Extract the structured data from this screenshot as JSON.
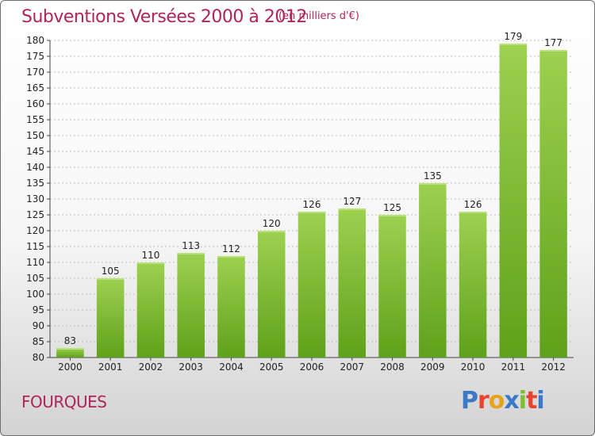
{
  "header": {
    "title": "Subventions Versées 2000 à 2012",
    "subtitle": "(en milliers d'€)"
  },
  "footer": {
    "commune": "FOURQUES",
    "logo_text": "Proxiti",
    "logo_colors": [
      "#3a78c8",
      "#e8432e",
      "#e8a31c",
      "#3a78c8",
      "#7cbf2e",
      "#e8432e",
      "#3a78c8"
    ]
  },
  "chart_data": {
    "type": "bar",
    "title": "Subventions Versées 2000 à 2012",
    "subtitle": "(en milliers d'€)",
    "categories": [
      "2000",
      "2001",
      "2002",
      "2003",
      "2004",
      "2005",
      "2006",
      "2007",
      "2008",
      "2009",
      "2010",
      "2011",
      "2012"
    ],
    "values": [
      83,
      105,
      110,
      113,
      112,
      120,
      126,
      127,
      125,
      135,
      126,
      179,
      177
    ],
    "data_labels": [
      "83",
      "105",
      "110",
      "113",
      "112",
      "120",
      "126",
      "127",
      "125",
      "135",
      "126",
      "179",
      "177"
    ],
    "ylim": [
      80,
      180
    ],
    "yticks": [
      80,
      85,
      90,
      95,
      100,
      105,
      110,
      115,
      120,
      125,
      130,
      135,
      140,
      145,
      150,
      155,
      160,
      165,
      170,
      175,
      180
    ],
    "ytick_labels": [
      "80",
      "85",
      "90",
      "95",
      "100",
      "105",
      "110",
      "115",
      "120",
      "125",
      "130",
      "135",
      "140",
      "145",
      "150",
      "155",
      "160",
      "165",
      "170",
      "175",
      "180"
    ],
    "grid": "horizontal dashed",
    "bar_color_top": "#9dd14f",
    "bar_color_bottom": "#5fa11a",
    "xlabel": "",
    "ylabel": ""
  }
}
